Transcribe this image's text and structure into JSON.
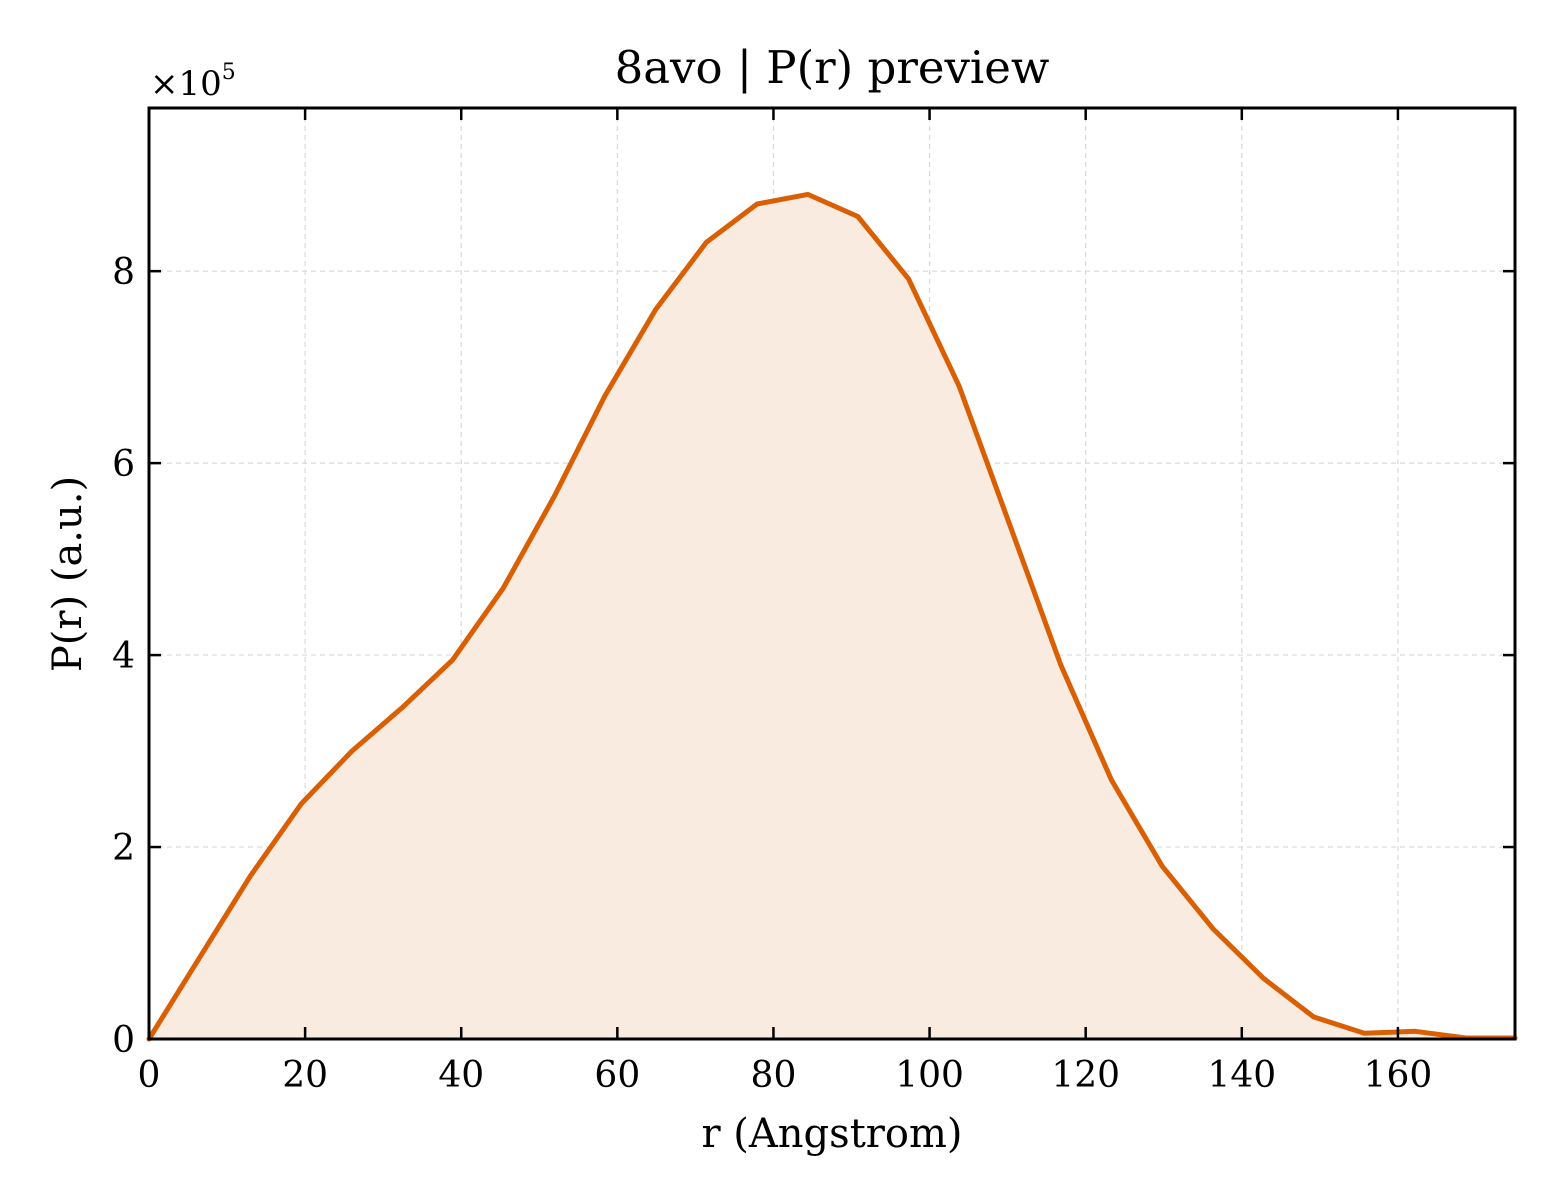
{
  "chart_data": {
    "type": "area",
    "title": "8avo | P(r) preview",
    "xlabel": "r (Angstrom)",
    "ylabel": "P(r) (a.u.)",
    "y_multiplier": "×10",
    "y_multiplier_exponent": "5",
    "xlim": [
      0,
      175
    ],
    "ylim": [
      0,
      9.7
    ],
    "xticks": [
      0,
      20,
      40,
      60,
      80,
      100,
      120,
      140,
      160
    ],
    "xtick_labels": [
      "0",
      "20",
      "40",
      "60",
      "80",
      "100",
      "120",
      "140",
      "160"
    ],
    "yticks": [
      0,
      2,
      4,
      6,
      8
    ],
    "ytick_labels": [
      "0",
      "2",
      "4",
      "6",
      "8"
    ],
    "grid": true,
    "line_color": "#d95f02",
    "fill_color": "#f9ebe0",
    "series": [
      {
        "x": [
          0,
          6.5,
          13,
          19.5,
          26,
          32.4,
          38.9,
          45.4,
          51.9,
          58.4,
          64.9,
          71.4,
          77.9,
          84.4,
          90.8,
          97.3,
          103.8,
          110.3,
          116.8,
          123.3,
          129.8,
          136.3,
          142.8,
          149.2,
          155.7,
          162.2,
          168.7,
          175
        ],
        "y": [
          0,
          0.85,
          1.7,
          2.45,
          3.0,
          3.45,
          3.95,
          4.7,
          5.65,
          6.7,
          7.6,
          8.3,
          8.7,
          8.8,
          8.57,
          7.92,
          6.8,
          5.35,
          3.9,
          2.7,
          1.8,
          1.15,
          0.63,
          0.23,
          0.06,
          0.08,
          0.01,
          0.01
        ]
      }
    ]
  }
}
